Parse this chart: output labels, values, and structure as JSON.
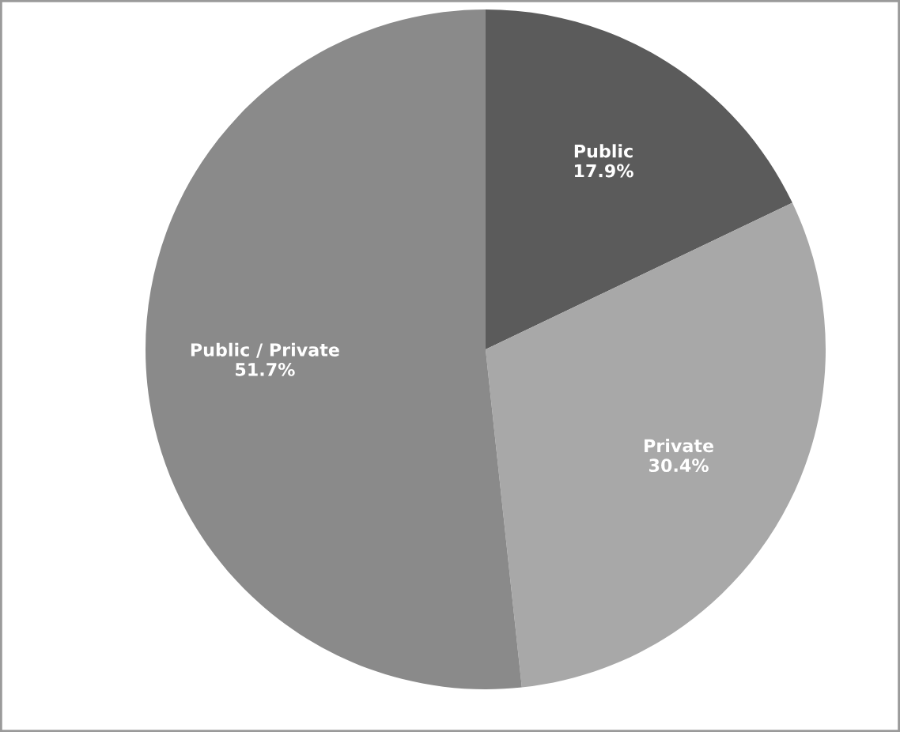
{
  "chart_data": {
    "type": "pie",
    "categories": [
      "Public",
      "Private",
      "Public / Private"
    ],
    "values": [
      17.9,
      30.4,
      51.7
    ],
    "value_labels": [
      "17.9%",
      "30.4%",
      "51.7%"
    ],
    "colors": [
      "#5b5b5b",
      "#a8a8a8",
      "#8a8a8a"
    ],
    "legend": false
  }
}
